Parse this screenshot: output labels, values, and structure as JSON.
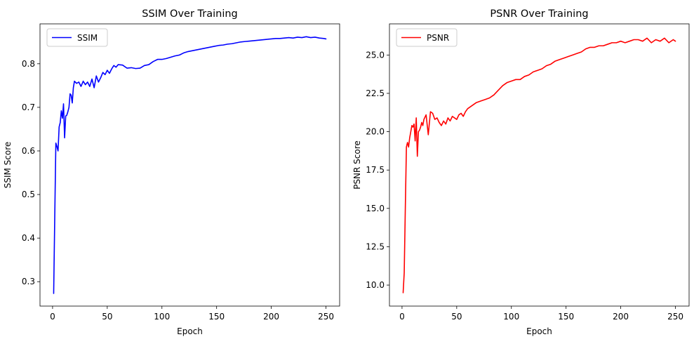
{
  "chart_data": [
    {
      "type": "line",
      "title": "SSIM Over Training",
      "xlabel": "Epoch",
      "ylabel": "SSIM Score",
      "xlim": [
        -11.5,
        262.5
      ],
      "ylim": [
        0.244,
        0.8915
      ],
      "xticks": [
        0,
        50,
        100,
        150,
        200,
        250
      ],
      "yticks": [
        0.3,
        0.4,
        0.5,
        0.6,
        0.7,
        0.8
      ],
      "ytick_labels": [
        "0.3",
        "0.4",
        "0.5",
        "0.6",
        "0.7",
        "0.8"
      ],
      "legend_position": "top-left",
      "grid": false,
      "series": [
        {
          "name": "SSIM",
          "color": "#0000ff",
          "x": [
            1,
            2,
            3,
            4,
            5,
            6,
            7,
            8,
            9,
            10,
            11,
            12,
            13,
            14,
            15,
            16,
            17,
            18,
            19,
            20,
            22,
            24,
            26,
            28,
            30,
            32,
            34,
            36,
            38,
            40,
            42,
            44,
            46,
            48,
            50,
            52,
            54,
            56,
            58,
            60,
            64,
            68,
            72,
            76,
            80,
            84,
            88,
            92,
            96,
            100,
            104,
            108,
            112,
            116,
            120,
            124,
            128,
            132,
            136,
            140,
            144,
            148,
            152,
            156,
            160,
            164,
            168,
            172,
            176,
            180,
            184,
            188,
            192,
            196,
            200,
            204,
            208,
            212,
            216,
            220,
            224,
            228,
            232,
            236,
            240,
            244,
            248,
            250
          ],
          "y": [
            0.273,
            0.45,
            0.618,
            0.61,
            0.6,
            0.655,
            0.665,
            0.692,
            0.675,
            0.708,
            0.63,
            0.68,
            0.682,
            0.69,
            0.7,
            0.731,
            0.728,
            0.71,
            0.745,
            0.76,
            0.755,
            0.758,
            0.748,
            0.76,
            0.752,
            0.758,
            0.748,
            0.765,
            0.745,
            0.772,
            0.758,
            0.768,
            0.78,
            0.775,
            0.785,
            0.778,
            0.788,
            0.796,
            0.792,
            0.798,
            0.797,
            0.79,
            0.791,
            0.789,
            0.79,
            0.796,
            0.798,
            0.805,
            0.81,
            0.81,
            0.812,
            0.815,
            0.818,
            0.82,
            0.825,
            0.828,
            0.83,
            0.832,
            0.834,
            0.836,
            0.838,
            0.84,
            0.842,
            0.843,
            0.845,
            0.846,
            0.848,
            0.85,
            0.851,
            0.852,
            0.853,
            0.854,
            0.855,
            0.856,
            0.857,
            0.858,
            0.858,
            0.859,
            0.86,
            0.859,
            0.861,
            0.86,
            0.862,
            0.86,
            0.861,
            0.859,
            0.858,
            0.857
          ]
        }
      ]
    },
    {
      "type": "line",
      "title": "PSNR Over Training",
      "xlabel": "Epoch",
      "ylabel": "PSNR Score",
      "xlim": [
        -11.5,
        262.5
      ],
      "ylim": [
        8.63,
        27.03
      ],
      "xticks": [
        0,
        50,
        100,
        150,
        200,
        250
      ],
      "yticks": [
        10.0,
        12.5,
        15.0,
        17.5,
        20.0,
        22.5,
        25.0
      ],
      "ytick_labels": [
        "10.0",
        "12.5",
        "15.0",
        "17.5",
        "20.0",
        "22.5",
        "25.0"
      ],
      "legend_position": "top-left",
      "grid": false,
      "series": [
        {
          "name": "PSNR",
          "color": "#ff0000",
          "x": [
            1,
            2,
            3,
            4,
            5,
            6,
            7,
            8,
            9,
            10,
            11,
            12,
            13,
            14,
            15,
            16,
            17,
            18,
            19,
            20,
            22,
            24,
            26,
            28,
            30,
            32,
            34,
            36,
            38,
            40,
            42,
            44,
            46,
            48,
            50,
            52,
            54,
            56,
            58,
            60,
            64,
            68,
            72,
            76,
            80,
            84,
            88,
            92,
            96,
            100,
            104,
            108,
            112,
            116,
            120,
            124,
            128,
            132,
            136,
            140,
            144,
            148,
            152,
            156,
            160,
            164,
            168,
            172,
            176,
            180,
            184,
            188,
            192,
            196,
            200,
            204,
            208,
            212,
            216,
            220,
            224,
            228,
            232,
            236,
            240,
            244,
            248,
            250
          ],
          "y": [
            9.5,
            10.8,
            15.0,
            19.0,
            19.3,
            19.0,
            19.6,
            20.0,
            20.4,
            20.3,
            20.5,
            19.4,
            20.9,
            18.4,
            20.0,
            20.1,
            20.3,
            20.6,
            20.4,
            20.8,
            21.1,
            19.8,
            21.3,
            21.2,
            20.8,
            20.9,
            20.6,
            20.4,
            20.7,
            20.5,
            20.9,
            20.7,
            21.0,
            20.9,
            20.8,
            21.1,
            21.2,
            21.0,
            21.3,
            21.5,
            21.7,
            21.9,
            22.0,
            22.1,
            22.2,
            22.4,
            22.7,
            23.0,
            23.2,
            23.3,
            23.4,
            23.4,
            23.6,
            23.7,
            23.9,
            24.0,
            24.1,
            24.3,
            24.4,
            24.6,
            24.7,
            24.8,
            24.9,
            25.0,
            25.1,
            25.2,
            25.4,
            25.5,
            25.5,
            25.6,
            25.6,
            25.7,
            25.8,
            25.8,
            25.9,
            25.8,
            25.9,
            26.0,
            26.0,
            25.9,
            26.1,
            25.8,
            26.0,
            25.9,
            26.1,
            25.8,
            26.0,
            25.9
          ]
        }
      ]
    }
  ]
}
